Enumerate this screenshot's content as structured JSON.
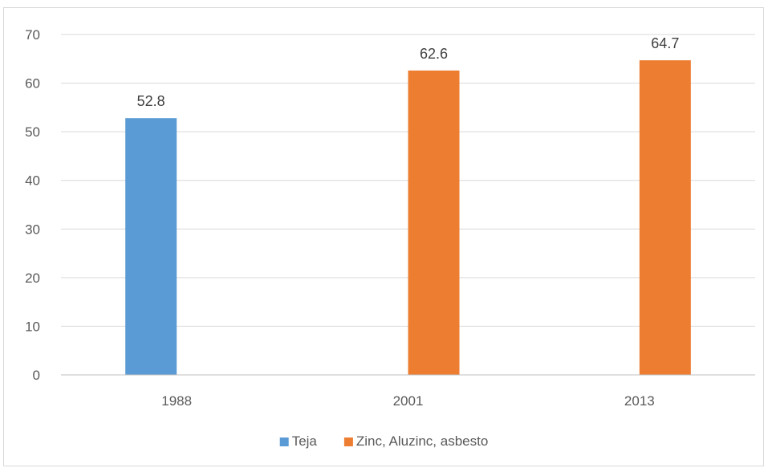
{
  "chart_data": {
    "type": "bar",
    "title": "",
    "xlabel": "",
    "ylabel": "",
    "categories": [
      "1988",
      "2001",
      "2013"
    ],
    "ylim": [
      0,
      70
    ],
    "yticks": [
      0,
      10,
      20,
      30,
      40,
      50,
      60,
      70
    ],
    "grid": true,
    "legend_position": "bottom",
    "series": [
      {
        "name": "Teja",
        "color": "#5b9bd5",
        "values": [
          52.8,
          null,
          null
        ]
      },
      {
        "name": "Zinc, Aluzinc, asbesto",
        "color": "#ed7d31",
        "values": [
          null,
          62.6,
          64.7
        ]
      }
    ]
  }
}
